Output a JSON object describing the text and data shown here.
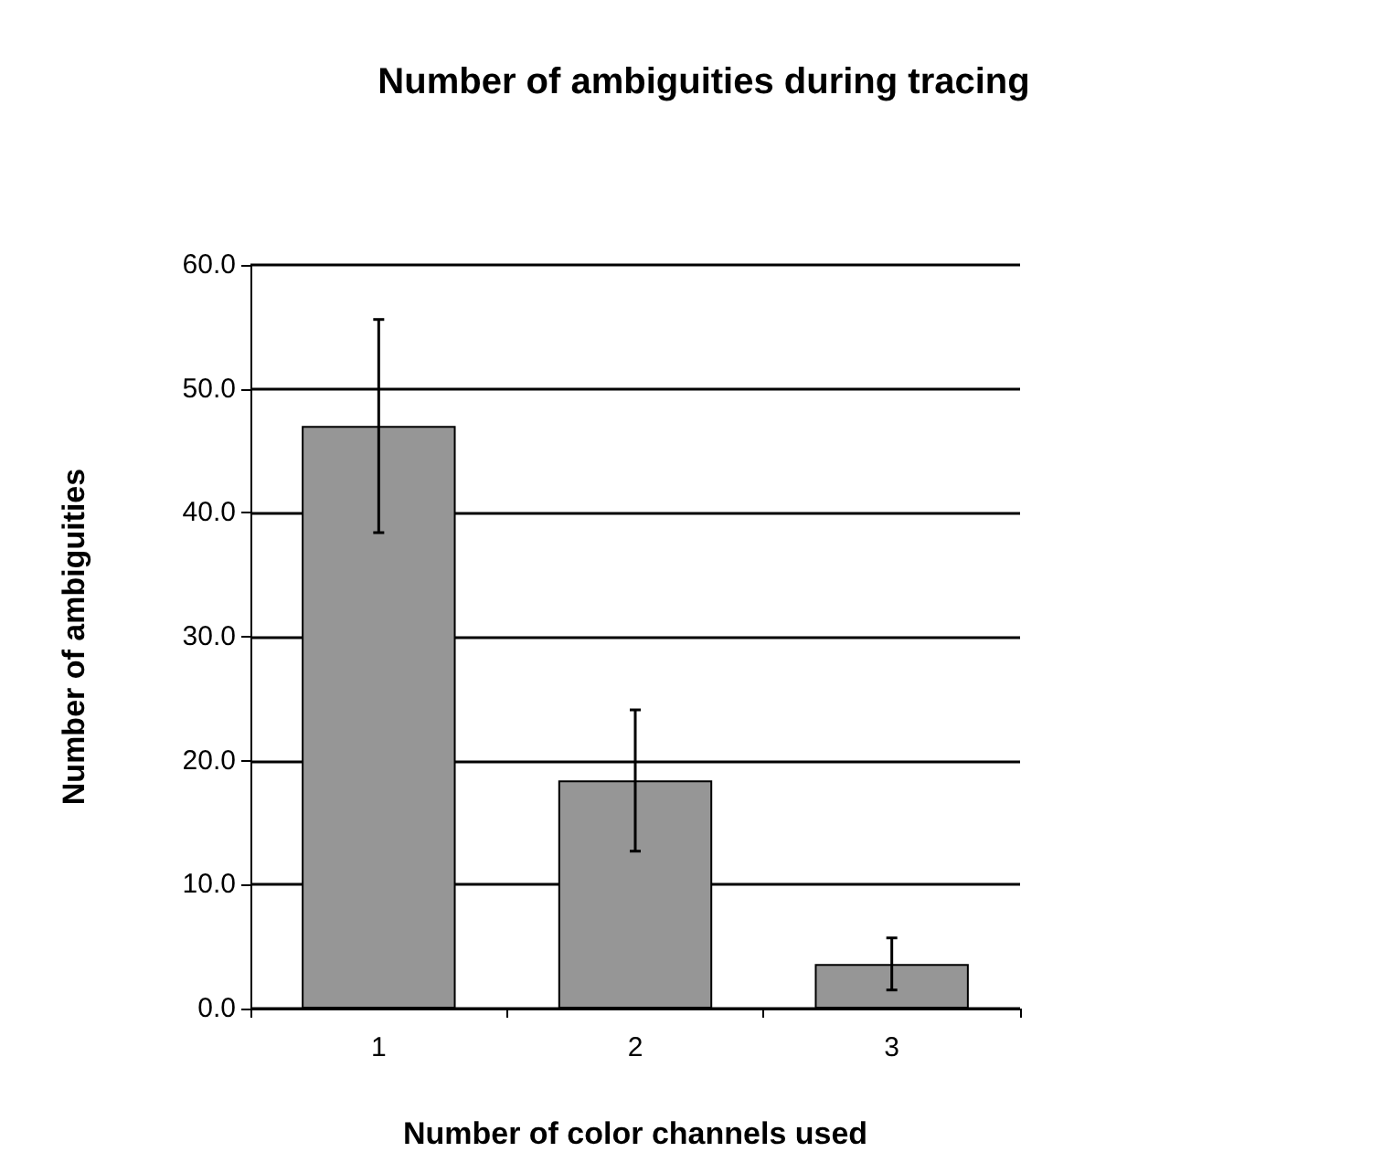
{
  "chart_data": {
    "type": "bar",
    "title": "Number of ambiguities during tracing",
    "xlabel": "Number of color channels used",
    "ylabel": "Number of ambiguities",
    "categories": [
      "1",
      "2",
      "3"
    ],
    "values": [
      47.0,
      18.4,
      3.6
    ],
    "errors": [
      8.6,
      5.7,
      2.1
    ],
    "color": "#969696",
    "ylim": [
      0,
      60
    ],
    "yticks": [
      {
        "value": 0,
        "label": "0.0"
      },
      {
        "value": 10,
        "label": "10.0"
      },
      {
        "value": 20,
        "label": "20.0"
      },
      {
        "value": 30,
        "label": "30.0"
      },
      {
        "value": 40,
        "label": "40.0"
      },
      {
        "value": 50,
        "label": "50.0"
      },
      {
        "value": 60,
        "label": "60.0"
      }
    ],
    "grid": "y"
  }
}
